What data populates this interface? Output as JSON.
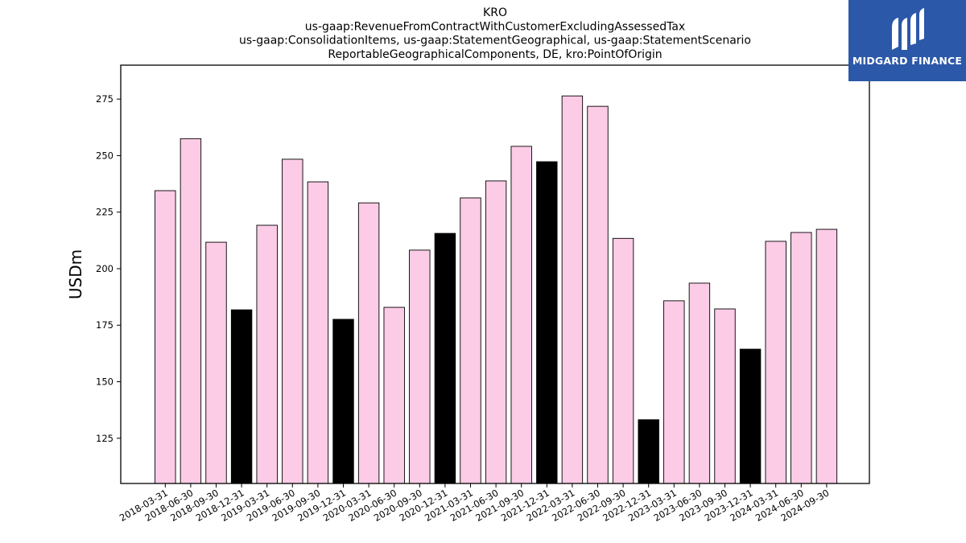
{
  "chart_data": {
    "type": "bar",
    "title": "KRO",
    "subtitle_lines": [
      "us-gaap:RevenueFromContractWithCustomerExcludingAssessedTax",
      "us-gaap:ConsolidationItems, us-gaap:StatementGeographical, us-gaap:StatementScenario",
      "ReportableGeographicalComponents, DE, kro:PointOfOrigin"
    ],
    "xlabel": "",
    "ylabel": "USDm",
    "ylim": [
      105,
      290
    ],
    "yticks": [
      125,
      150,
      175,
      200,
      225,
      250,
      275
    ],
    "grid": false,
    "categories": [
      "2018-03-31",
      "2018-06-30",
      "2018-09-30",
      "2018-12-31",
      "2019-03-31",
      "2019-06-30",
      "2019-09-30",
      "2019-12-31",
      "2020-03-31",
      "2020-06-30",
      "2020-09-30",
      "2020-12-31",
      "2021-03-31",
      "2021-06-30",
      "2021-09-30",
      "2021-12-31",
      "2022-03-31",
      "2022-06-30",
      "2022-09-30",
      "2022-12-31",
      "2023-03-31",
      "2023-06-30",
      "2023-09-30",
      "2023-12-31",
      "2024-03-31",
      "2024-06-30",
      "2024-09-30"
    ],
    "values": [
      234.5,
      257.5,
      211.7,
      181.8,
      219.2,
      248.4,
      238.4,
      177.6,
      229.1,
      182.9,
      208.2,
      215.6,
      231.3,
      238.8,
      254.1,
      247.3,
      276.4,
      271.8,
      213.4,
      133.2,
      185.8,
      193.6,
      182.2,
      164.4,
      212.1,
      216.0,
      217.4
    ],
    "colors": {
      "quarter": "#fccbe6",
      "year_end": "#000000",
      "edge": "#000000"
    }
  },
  "logo": {
    "text": "MIDGARD FINANCE",
    "background": "#2b58a8"
  }
}
